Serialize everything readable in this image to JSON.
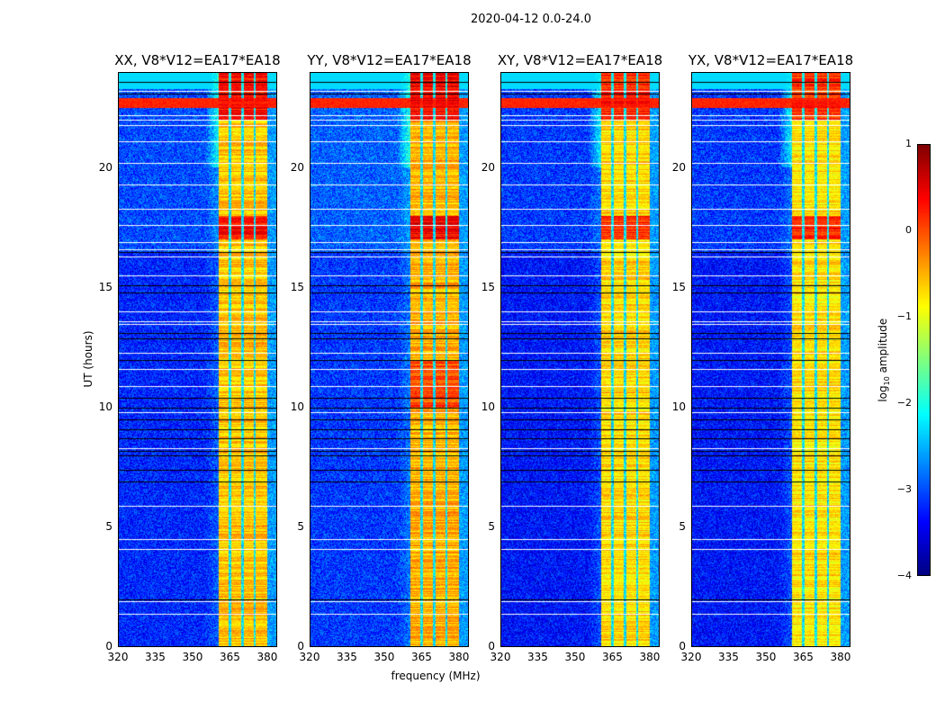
{
  "suptitle": "2020-04-12 0.0-24.0",
  "chart_data": {
    "type": "heatmap",
    "title": "2020-04-12 0.0-24.0",
    "xlabel": "frequency (MHz)",
    "ylabel": "UT (hours)",
    "xlim": [
      320,
      384
    ],
    "ylim": [
      0,
      24
    ],
    "xticks": [
      "320",
      "335",
      "350",
      "365",
      "380"
    ],
    "xtick_values": [
      320,
      335,
      350,
      365,
      380
    ],
    "yticks": [
      "0",
      "5",
      "10",
      "15",
      "20"
    ],
    "ytick_values": [
      0,
      5,
      10,
      15,
      20
    ],
    "colorbar": {
      "label": "log10 amplitude",
      "label_main": "log",
      "label_sub": "10",
      "label_rest": " amplitude",
      "range": [
        -4,
        1
      ],
      "ticks": [
        "1",
        "0",
        "−1",
        "−2",
        "−3",
        "−4"
      ],
      "tick_values": [
        1,
        0,
        -1,
        -2,
        -3,
        -4
      ],
      "colormap": "jet"
    },
    "panels": [
      {
        "title": "XX, V8*V12=EA17*EA18",
        "background": -3.2,
        "rfi_level": -0.6
      },
      {
        "title": "YY, V8*V12=EA17*EA18",
        "background": -3.1,
        "rfi_level": -0.5
      },
      {
        "title": "XY, V8*V12=EA17*EA18",
        "background": -3.3,
        "rfi_level": -0.7
      },
      {
        "title": "YX, V8*V12=EA17*EA18",
        "background": -3.3,
        "rfi_level": -0.75
      }
    ],
    "rfi_band_mhz": [
      360.5,
      380
    ],
    "rfi_gaps_mhz": [
      365,
      370,
      375
    ],
    "strong_broadband_rfi_hours": [
      22.5,
      22.9
    ],
    "flagged_white_hours": [
      1.4,
      1.9,
      4.1,
      4.5,
      5.9,
      8.3,
      9.8,
      10.9,
      11.6,
      12.3,
      13.5,
      13.6,
      14.0,
      15.5,
      16.3,
      16.6,
      16.9,
      17.6,
      18.3,
      19.3,
      20.2,
      21.1,
      21.8,
      22.0,
      22.2,
      23.2
    ],
    "black_line_hours": [
      2.0,
      6.9,
      7.4,
      8.0,
      8.2,
      8.7,
      9.1,
      9.5,
      10.0,
      10.4,
      12.0,
      12.9,
      13.1,
      14.8,
      15.1,
      16.5,
      20.2,
      23.1,
      23.6
    ]
  }
}
